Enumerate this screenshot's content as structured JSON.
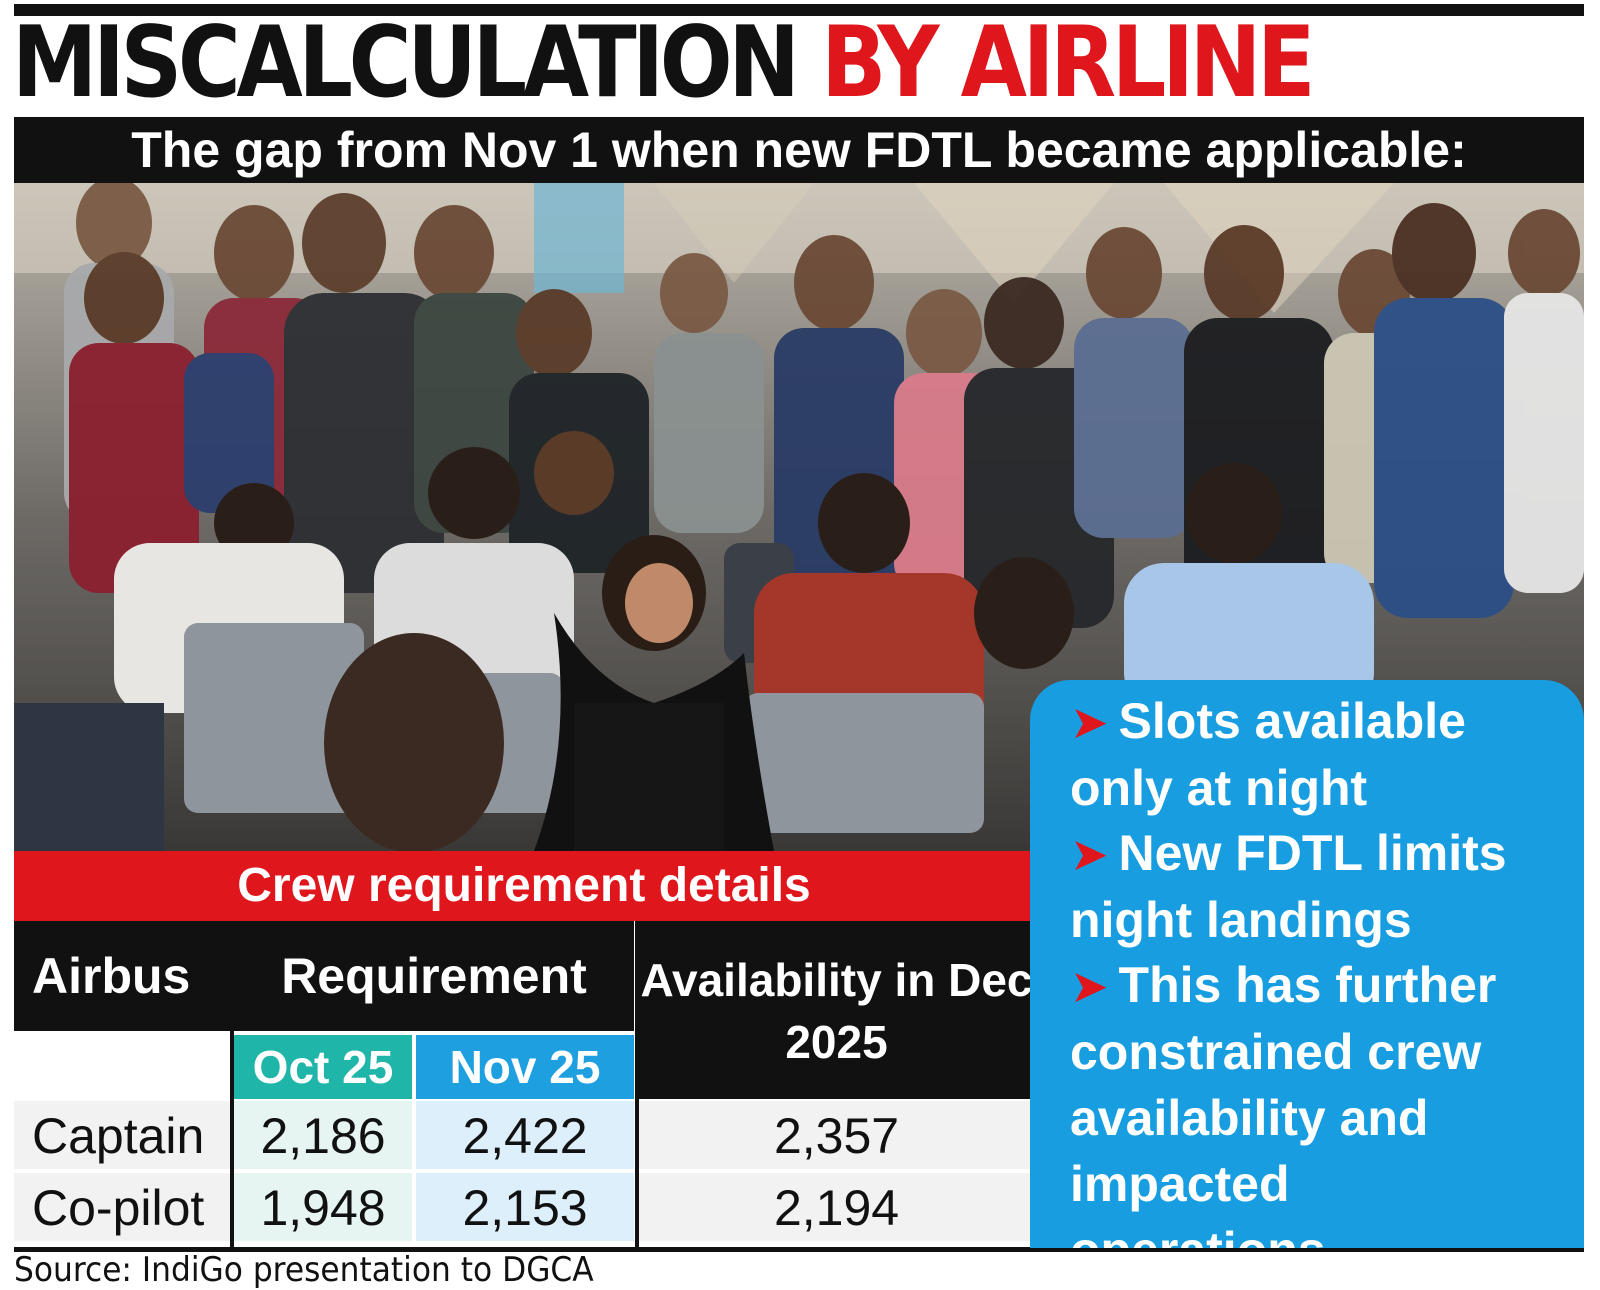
{
  "headline": {
    "part1": "MISCALCULATION",
    "part2": "BY AIRLINE"
  },
  "subheadline": "The gap from Nov 1 when new FDTL became applicable:",
  "photo": {
    "description": "crowd-photo"
  },
  "bullets": [
    {
      "arrow": "➤",
      "text": "Slots available only at night"
    },
    {
      "arrow": "➤",
      "text": "New FDTL limits night landings"
    },
    {
      "arrow": "➤",
      "text": "This has further constrained crew availability and impacted operations"
    }
  ],
  "source": "Source: IndiGo presentation to DGCA",
  "colors": {
    "red": "#e0161d",
    "teal": "#1fb5a8",
    "blue": "#1e9fe0",
    "panel_blue": "#189ee0",
    "black": "#111111"
  },
  "chart_data": {
    "type": "table",
    "title": "Crew requirement details",
    "headers": {
      "row_label": "Airbus",
      "group": "Requirement",
      "oct": "Oct 25",
      "nov": "Nov 25",
      "avail": "Availability in Dec 2025"
    },
    "rows": [
      {
        "label": "Captain",
        "oct": "2,186",
        "nov": "2,422",
        "avail": "2,357"
      },
      {
        "label": "Co-pilot",
        "oct": "1,948",
        "nov": "2,153",
        "avail": "2,194"
      }
    ]
  }
}
